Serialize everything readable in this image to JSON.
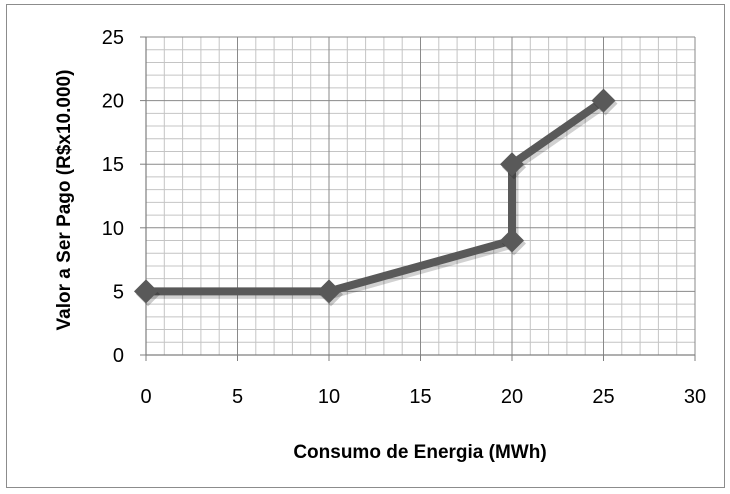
{
  "chart_data": {
    "type": "line",
    "title": "",
    "xlabel": "Consumo de Energia (MWh)",
    "ylabel": "Valor a Ser Pago (R$x10.000)",
    "xlim": [
      0,
      30
    ],
    "ylim": [
      0,
      25
    ],
    "x_major_ticks": [
      0,
      5,
      10,
      15,
      20,
      25,
      30
    ],
    "y_major_ticks": [
      0,
      5,
      10,
      15,
      20,
      25
    ],
    "x_tick_labels": [
      "0",
      "5",
      "10",
      "15",
      "20",
      "25",
      "30"
    ],
    "y_tick_labels": [
      "0",
      "5",
      "10",
      "15",
      "20",
      "25"
    ],
    "minor_grid_step_x": 1,
    "minor_grid_step_y": 1,
    "grid": true,
    "legend": "none",
    "series": [
      {
        "x": [
          0,
          10,
          20,
          20,
          25
        ],
        "y": [
          5,
          5,
          9,
          15,
          20
        ],
        "color": "#595959",
        "marker": "diamond"
      }
    ]
  }
}
